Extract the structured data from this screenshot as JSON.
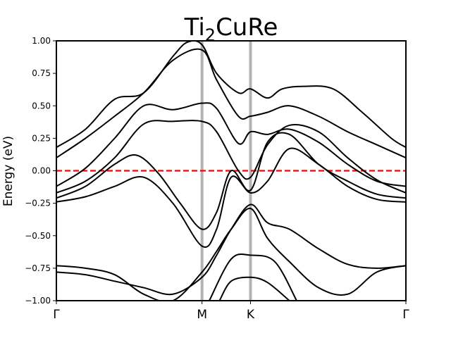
{
  "chart_data": {
    "type": "line",
    "title": {
      "main": "Ti",
      "sub": "2",
      "rest": "CuRe"
    },
    "ylabel": "Energy (eV)",
    "xlabel": "",
    "ylim": [
      -1.0,
      1.0
    ],
    "yticks": [
      "1.00",
      "0.75",
      "0.50",
      "0.25",
      "0.00",
      "−0.25",
      "−0.50",
      "−0.75",
      "−1.00"
    ],
    "ytick_values": [
      1.0,
      0.75,
      0.5,
      0.25,
      0.0,
      -0.25,
      -0.5,
      -0.75,
      -1.0
    ],
    "high_symmetry_points": [
      {
        "label": "Γ",
        "k": 0.0
      },
      {
        "label": "M",
        "k": 1.0
      },
      {
        "label": "K",
        "k": 1.333
      },
      {
        "label": "Γ",
        "k": 2.4
      }
    ],
    "xlim": [
      0.0,
      2.4
    ],
    "fermi_level": {
      "value": 0.0,
      "color": "#ff0000",
      "style": "dashed"
    },
    "symmetry_line_color": "#b3b3b3",
    "band_color": "#000000",
    "series": [
      {
        "x": [
          0,
          0.2,
          0.4,
          0.6,
          0.8,
          1.0,
          1.1,
          1.2,
          1.333,
          1.45,
          1.6,
          1.8,
          2.0,
          2.2,
          2.4
        ],
        "values": [
          -0.24,
          -0.2,
          -0.12,
          -0.05,
          -0.25,
          -0.58,
          -0.45,
          -0.05,
          -0.17,
          -0.08,
          0.17,
          0.05,
          -0.12,
          -0.22,
          -0.24
        ]
      },
      {
        "x": [
          0,
          0.2,
          0.4,
          0.55,
          0.7,
          0.85,
          1.0,
          1.1,
          1.2,
          1.333,
          1.45,
          1.6,
          1.8,
          2.0,
          2.2,
          2.4
        ],
        "values": [
          -0.21,
          -0.12,
          0.05,
          0.12,
          -0.02,
          -0.25,
          -0.45,
          -0.32,
          0.0,
          -0.15,
          0.22,
          0.28,
          0.05,
          -0.08,
          -0.18,
          -0.21
        ]
      },
      {
        "x": [
          0,
          0.2,
          0.4,
          0.6,
          0.8,
          1.0,
          1.1,
          1.25,
          1.333,
          1.45,
          1.6,
          1.8,
          2.0,
          2.2,
          2.4
        ],
        "values": [
          -0.17,
          -0.08,
          0.1,
          0.36,
          0.38,
          0.38,
          0.3,
          0.0,
          -0.05,
          0.2,
          0.35,
          0.3,
          0.1,
          -0.07,
          -0.17
        ]
      },
      {
        "x": [
          0,
          0.2,
          0.4,
          0.6,
          0.8,
          1.0,
          1.1,
          1.25,
          1.333,
          1.45,
          1.6,
          1.8,
          2.0,
          2.2,
          2.4
        ],
        "values": [
          -0.12,
          0.02,
          0.25,
          0.5,
          0.47,
          0.52,
          0.48,
          0.21,
          0.3,
          0.28,
          0.32,
          0.22,
          0.05,
          -0.08,
          -0.12
        ]
      },
      {
        "x": [
          0,
          0.2,
          0.4,
          0.6,
          0.8,
          1.0,
          1.1,
          1.25,
          1.333,
          1.45,
          1.6,
          1.8,
          2.0,
          2.2,
          2.4
        ],
        "values": [
          0.1,
          0.25,
          0.42,
          0.6,
          0.85,
          0.93,
          0.7,
          0.42,
          0.42,
          0.45,
          0.5,
          0.42,
          0.3,
          0.2,
          0.1
        ]
      },
      {
        "x": [
          0,
          0.2,
          0.4,
          0.6,
          0.8,
          0.9,
          1.0,
          1.1,
          1.25,
          1.333,
          1.45,
          1.55,
          1.7,
          1.9,
          2.1,
          2.3,
          2.4
        ],
        "values": [
          0.18,
          0.32,
          0.55,
          0.6,
          0.88,
          0.99,
          0.97,
          0.75,
          0.6,
          0.63,
          0.56,
          0.63,
          0.65,
          0.63,
          0.45,
          0.25,
          0.18
        ]
      },
      {
        "x": [
          0,
          0.2,
          0.4,
          0.6,
          0.8,
          1.0,
          1.1,
          1.2,
          1.333,
          1.45,
          1.6,
          1.8,
          2.0,
          2.2,
          2.4
        ],
        "values": [
          -0.78,
          -0.8,
          -0.85,
          -0.9,
          -0.95,
          -0.82,
          -0.65,
          -0.45,
          -0.26,
          -0.4,
          -0.45,
          -0.6,
          -0.72,
          -0.75,
          -0.73
        ]
      },
      {
        "x": [
          0,
          0.2,
          0.4,
          0.6,
          0.8,
          1.0,
          1.1,
          1.2,
          1.333,
          1.45,
          1.6,
          1.8,
          2.0,
          2.2,
          2.4
        ],
        "values": [
          -0.73,
          -0.75,
          -0.8,
          -0.95,
          -1.0,
          -0.78,
          -0.62,
          -0.45,
          -0.29,
          -0.52,
          -0.7,
          -0.9,
          -0.95,
          -0.78,
          -0.73
        ]
      },
      {
        "x": [
          1.05,
          1.2,
          1.333,
          1.5,
          1.65
        ],
        "values": [
          -1.0,
          -0.68,
          -0.65,
          -0.7,
          -1.0
        ]
      },
      {
        "x": [
          1.12,
          1.2,
          1.333,
          1.45,
          1.6
        ],
        "values": [
          -1.0,
          -0.85,
          -0.82,
          -0.86,
          -1.0
        ]
      }
    ]
  }
}
